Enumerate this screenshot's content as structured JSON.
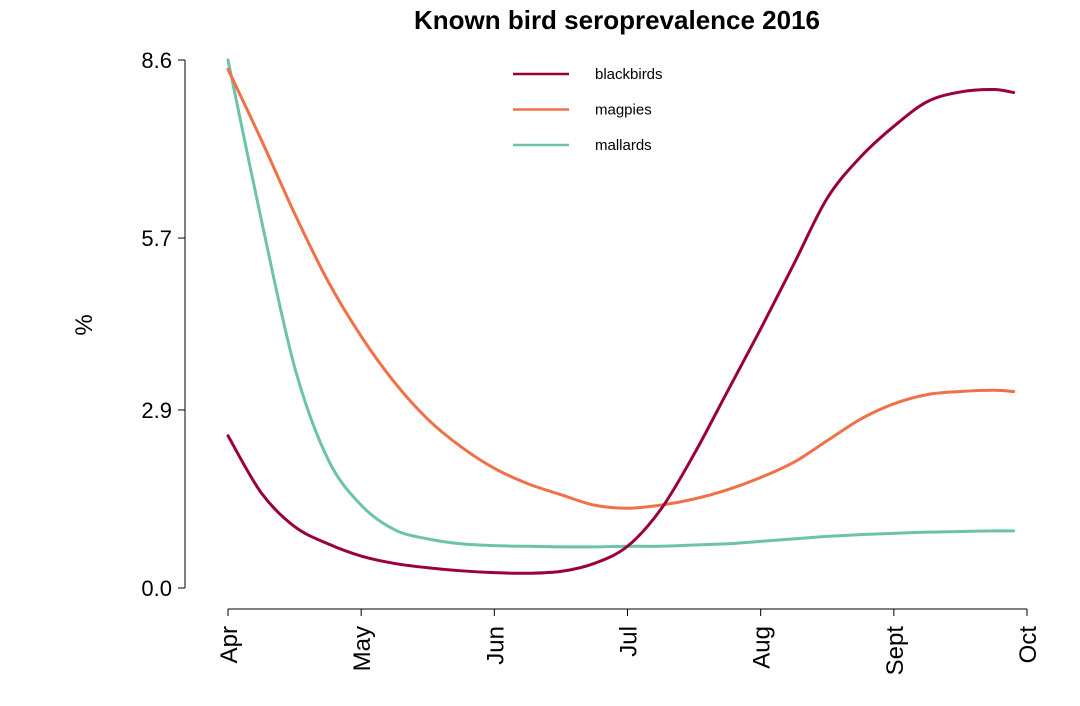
{
  "chart_data": {
    "type": "line",
    "title": "Known bird seroprevalence 2016",
    "xlabel": "",
    "ylabel": "%",
    "x_ticks": [
      "Apr",
      "May",
      "Jun",
      "Jul",
      "Aug",
      "Sept",
      "Oct"
    ],
    "y_ticks": [
      "0.0",
      "2.9",
      "5.7",
      "8.6"
    ],
    "ylim": [
      0,
      8.6
    ],
    "xlim": [
      0,
      6
    ],
    "legend_position": "top",
    "x": [
      0,
      0.25,
      0.5,
      0.75,
      1.0,
      1.25,
      1.5,
      1.75,
      2.0,
      2.25,
      2.5,
      2.75,
      3.0,
      3.25,
      3.5,
      3.75,
      4.0,
      4.25,
      4.5,
      4.75,
      5.0,
      5.25,
      5.5,
      5.75,
      5.9
    ],
    "series": [
      {
        "name": "blackbirds",
        "color": "#99003f",
        "values": [
          2.48,
          1.55,
          1.0,
          0.72,
          0.52,
          0.4,
          0.33,
          0.28,
          0.25,
          0.24,
          0.27,
          0.4,
          0.68,
          1.28,
          2.18,
          3.2,
          4.22,
          5.28,
          6.35,
          7.02,
          7.52,
          7.92,
          8.08,
          8.12,
          8.07
        ]
      },
      {
        "name": "magpies",
        "color": "#f07048",
        "values": [
          8.45,
          7.3,
          6.1,
          5.0,
          4.1,
          3.35,
          2.75,
          2.3,
          1.95,
          1.7,
          1.52,
          1.35,
          1.3,
          1.35,
          1.45,
          1.6,
          1.8,
          2.05,
          2.4,
          2.75,
          3.0,
          3.15,
          3.2,
          3.22,
          3.2
        ]
      },
      {
        "name": "mallards",
        "color": "#6cc4a4",
        "values": [
          8.6,
          6.0,
          3.6,
          2.1,
          1.35,
          0.95,
          0.8,
          0.72,
          0.69,
          0.68,
          0.67,
          0.67,
          0.68,
          0.68,
          0.7,
          0.72,
          0.76,
          0.8,
          0.84,
          0.87,
          0.89,
          0.91,
          0.92,
          0.93,
          0.93
        ]
      }
    ]
  }
}
